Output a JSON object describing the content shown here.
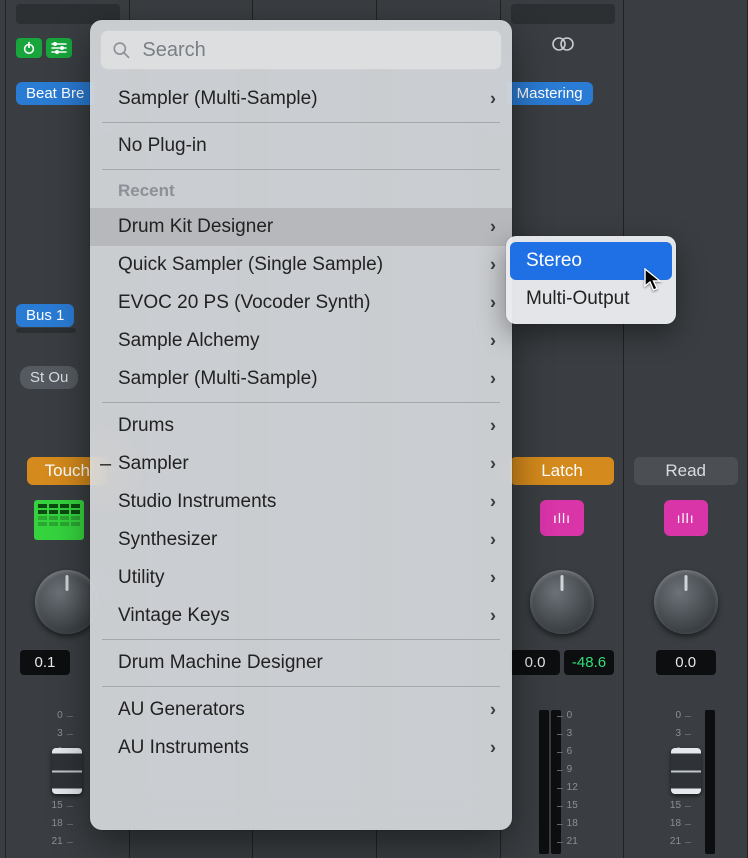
{
  "search_placeholder": "Search",
  "menu": {
    "group_top": [
      {
        "label": "Sampler (Multi-Sample)",
        "arrow": true
      }
    ],
    "no_plugin": "No Plug-in",
    "recent_header": "Recent",
    "recent": [
      {
        "label": "Drum Kit Designer",
        "arrow": true,
        "selected": true
      },
      {
        "label": "Quick Sampler (Single Sample)",
        "arrow": true
      },
      {
        "label": "EVOC 20 PS (Vocoder Synth)",
        "arrow": true
      },
      {
        "label": "Sample Alchemy",
        "arrow": true
      },
      {
        "label": "Sampler (Multi-Sample)",
        "arrow": true
      }
    ],
    "categories": [
      {
        "label": "Drums",
        "arrow": true
      },
      {
        "label": "Sampler",
        "arrow": true,
        "dash": true
      },
      {
        "label": "Studio Instruments",
        "arrow": true
      },
      {
        "label": "Synthesizer",
        "arrow": true
      },
      {
        "label": "Utility",
        "arrow": true
      },
      {
        "label": "Vintage Keys",
        "arrow": true
      }
    ],
    "dmd": "Drum Machine Designer",
    "au": [
      {
        "label": "AU Generators",
        "arrow": true
      },
      {
        "label": "AU Instruments",
        "arrow": true
      }
    ]
  },
  "submenu": [
    {
      "label": "Stereo",
      "hl": true
    },
    {
      "label": "Multi-Output"
    }
  ],
  "strips": {
    "beat_breaker": "Beat Bre",
    "mastering": "Mastering",
    "bus": "Bus 1",
    "st_out": "St Ou",
    "automation": {
      "touch": "Touch",
      "latch": "Latch",
      "read": "Read"
    },
    "values": {
      "v0": "0.1",
      "v4_main": "0.0",
      "v4_peak": "-48.6",
      "v5": "0.0"
    },
    "scale_labels": [
      "0",
      "3",
      "6",
      "9",
      "12",
      "15",
      "18",
      "21"
    ]
  },
  "colors": {
    "blue_chip": "#2a7bd4",
    "green": "#18a53b",
    "orange": "#d48a1c",
    "pink": "#d934a8",
    "menu_highlight": "#1f6fe5",
    "peak_green": "#2fe07a"
  }
}
